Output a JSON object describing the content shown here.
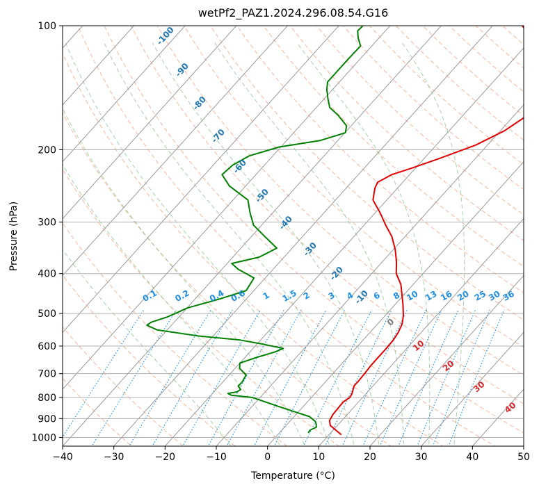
{
  "chart_data": {
    "type": "line",
    "title": "wetPf2_PAZ1.2024.296.08.54.G16",
    "xlabel": "Temperature (°C)",
    "ylabel": "Pressure (hPa)",
    "x_ticks": [
      -40,
      -30,
      -20,
      -10,
      0,
      10,
      20,
      30,
      40,
      50
    ],
    "y_ticks": [
      100,
      200,
      300,
      400,
      500,
      600,
      700,
      800,
      900,
      1000
    ],
    "xlim": [
      -40,
      50
    ],
    "ylim": [
      1050,
      100
    ],
    "y_scale": "log",
    "grid": true,
    "diagram": "skew-T log-P",
    "series": [
      {
        "color": "#e00000",
        "data": [
          [
            12.4,
            985
          ],
          [
            10.5,
            960
          ],
          [
            8.6,
            935
          ],
          [
            7.6,
            910
          ],
          [
            7.2,
            880
          ],
          [
            7.1,
            850
          ],
          [
            7.0,
            820
          ],
          [
            7.5,
            800
          ],
          [
            7.3,
            785
          ],
          [
            6.9,
            770
          ],
          [
            6.3,
            750
          ],
          [
            6.3,
            730
          ],
          [
            6.2,
            700
          ],
          [
            6.0,
            670
          ],
          [
            6.0,
            640
          ],
          [
            6.0,
            610
          ],
          [
            5.9,
            580
          ],
          [
            5.5,
            555
          ],
          [
            4.8,
            530
          ],
          [
            3.5,
            505
          ],
          [
            1.5,
            475
          ],
          [
            -0.4,
            450
          ],
          [
            -2.4,
            425
          ],
          [
            -5.2,
            400
          ],
          [
            -7.2,
            375
          ],
          [
            -9.6,
            350
          ],
          [
            -12.6,
            325
          ],
          [
            -15.8,
            305
          ],
          [
            -19.0,
            285
          ],
          [
            -22.7,
            265
          ],
          [
            -24.4,
            248
          ],
          [
            -24.9,
            240
          ],
          [
            -23.5,
            230
          ],
          [
            -20.8,
            222
          ],
          [
            -17.0,
            210
          ],
          [
            -12.3,
            195
          ],
          [
            -9.2,
            180
          ],
          [
            -7.4,
            165
          ],
          [
            -5.2,
            150
          ],
          [
            -5.0,
            140
          ],
          [
            -7.2,
            130
          ],
          [
            -10.6,
            122
          ],
          [
            -17.1,
            113
          ],
          [
            -24.2,
            100
          ]
        ]
      },
      {
        "color": "#008000",
        "data": [
          [
            5.6,
            975
          ],
          [
            5.5,
            960
          ],
          [
            6.2,
            945
          ],
          [
            5.7,
            930
          ],
          [
            5.0,
            915
          ],
          [
            3.0,
            890
          ],
          [
            -1.0,
            865
          ],
          [
            -5.0,
            840
          ],
          [
            -9.0,
            815
          ],
          [
            -11.5,
            800
          ],
          [
            -16.0,
            790
          ],
          [
            -17.0,
            782
          ],
          [
            -15.5,
            775
          ],
          [
            -15.2,
            765
          ],
          [
            -16.3,
            750
          ],
          [
            -16.2,
            735
          ],
          [
            -16.7,
            705
          ],
          [
            -19.1,
            680
          ],
          [
            -20.0,
            660
          ],
          [
            -17.8,
            640
          ],
          [
            -15.1,
            620
          ],
          [
            -14.1,
            608
          ],
          [
            -19.0,
            593
          ],
          [
            -24.0,
            580
          ],
          [
            -32.8,
            567
          ],
          [
            -42.0,
            548
          ],
          [
            -44.8,
            534
          ],
          [
            -44.5,
            525
          ],
          [
            -42.3,
            510
          ],
          [
            -41.3,
            500
          ],
          [
            -40.0,
            485
          ],
          [
            -35.0,
            460
          ],
          [
            -31.5,
            440
          ],
          [
            -32.2,
            410
          ],
          [
            -36.9,
            390
          ],
          [
            -39.1,
            378
          ],
          [
            -34.9,
            365
          ],
          [
            -33.0,
            347
          ],
          [
            -37.4,
            325
          ],
          [
            -41.6,
            305
          ],
          [
            -44.4,
            285
          ],
          [
            -47.1,
            265
          ],
          [
            -53.2,
            245
          ],
          [
            -56.6,
            230
          ],
          [
            -56.2,
            218
          ],
          [
            -54.6,
            207
          ],
          [
            -50.3,
            197
          ],
          [
            -43.4,
            190
          ],
          [
            -39.9,
            182
          ],
          [
            -40.9,
            175
          ],
          [
            -44.4,
            165
          ],
          [
            -47.4,
            158
          ],
          [
            -49.4,
            150
          ],
          [
            -51.1,
            143
          ],
          [
            -52.3,
            137
          ],
          [
            -52.3,
            130
          ],
          [
            -52.3,
            120
          ],
          [
            -52.2,
            112
          ],
          [
            -54.1,
            107
          ],
          [
            -55.4,
            103
          ],
          [
            -55.3,
            100
          ]
        ]
      }
    ],
    "mixing_ratio_labels": [
      "0.1",
      "0.2",
      "0.4",
      "0.6",
      "1",
      "1.5",
      "2",
      "3",
      "4",
      "6",
      "8",
      "10",
      "13",
      "16",
      "20",
      "25",
      "30",
      "36"
    ],
    "dry_adiabat_labels": [
      "-100",
      "-90",
      "-80",
      "-70",
      "-60",
      "-50",
      "-40",
      "-30",
      "-20",
      "-10"
    ],
    "moist_adiabat_labels": [
      "0",
      "10",
      "20",
      "30",
      "40"
    ],
    "colors": {
      "temperature": "#e00000",
      "dewpoint": "#008000",
      "dry_adiabat": "#f4a582",
      "moist_adiabat": "#7fbf7f",
      "mixing_ratio": "#1f8fe0",
      "dry_adiabat_label": "#1f77b4",
      "moist_adiabat_label": "#d62728",
      "isotherm": "#999999",
      "grid": "#b0b0b0"
    }
  }
}
